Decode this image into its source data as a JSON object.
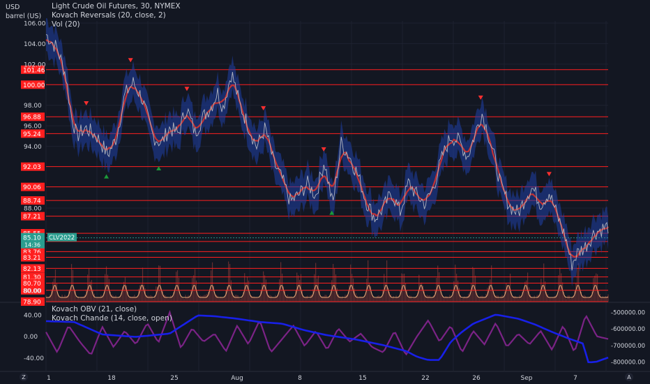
{
  "header": {
    "currency": "USD",
    "unit": "barrel (US)",
    "line1": "Light Crude Oil Futures, 30, NYMEX",
    "line2": "Kovach Reversals (20, close, 2)",
    "line3": "Vol (20)",
    "osc_line1": "Kovach OBV (21, close)",
    "osc_line2": "Kovach Chande (14, close, open)"
  },
  "colors": {
    "background": "#131722",
    "grid": "#1e2230",
    "level": "#ff1f1f",
    "price": "#b2b5be",
    "reversal_band": "#e0342a",
    "envelope": "#1f3fa8",
    "sell_marker": "#ff2f2f",
    "buy_marker": "#1b9a3a",
    "volume": "#7a3636",
    "vol_ma": "#e8a878",
    "obv": "#1820e8",
    "chande": "#7b2386",
    "ticker_tag": "#2a9d8f"
  },
  "time_axis": {
    "labels": [
      "1",
      "18",
      "25",
      "Aug",
      "8",
      "15",
      "22",
      "26",
      "Sep",
      "7"
    ],
    "left_icon": "Z",
    "right_icon": "A"
  },
  "price_axis": {
    "ticks": [
      "106.00",
      "104.00",
      "102.00",
      "98.00",
      "96.00",
      "94.00",
      "88.00",
      "80.00"
    ],
    "range": [
      78.9,
      106.2
    ]
  },
  "levels": [
    "101.46",
    "100.00",
    "96.88",
    "95.24",
    "92.03",
    "90.06",
    "88.74",
    "87.21",
    "85.55",
    "84.75",
    "83.76",
    "83.21",
    "82.13",
    "81.30",
    "80.70",
    "80.00",
    "78.90"
  ],
  "last_price": {
    "value": "85.10",
    "countdown": "14:36",
    "ticker": "CLV2022"
  },
  "osc_axis": {
    "left_ticks": [
      "40.00",
      "0.00",
      "-40.00"
    ],
    "right_ticks": [
      "-500000.00",
      "-600000.00",
      "-700000.00",
      "-800000.00"
    ],
    "left_range": [
      -64,
      62
    ],
    "right_range": [
      -855000,
      -445000
    ]
  },
  "chart_data": [
    {
      "type": "line",
      "name": "Light Crude Oil Futures, 30, NYMEX",
      "x_start": "Jul 1",
      "x_end": "Sep 9",
      "anchors": [
        [
          0,
          104.9
        ],
        [
          0.02,
          103.5
        ],
        [
          0.035,
          101.0
        ],
        [
          0.045,
          97.0
        ],
        [
          0.055,
          95.0
        ],
        [
          0.07,
          95.8
        ],
        [
          0.09,
          95.0
        ],
        [
          0.11,
          93.2
        ],
        [
          0.125,
          94.8
        ],
        [
          0.14,
          99.0
        ],
        [
          0.155,
          100.2
        ],
        [
          0.17,
          98.8
        ],
        [
          0.19,
          95.0
        ],
        [
          0.205,
          94.3
        ],
        [
          0.22,
          95.8
        ],
        [
          0.235,
          95.2
        ],
        [
          0.25,
          97.8
        ],
        [
          0.265,
          95.3
        ],
        [
          0.28,
          96.9
        ],
        [
          0.295,
          98.0
        ],
        [
          0.305,
          99.3
        ],
        [
          0.315,
          97.8
        ],
        [
          0.33,
          101.2
        ],
        [
          0.345,
          98.0
        ],
        [
          0.36,
          96.0
        ],
        [
          0.375,
          93.9
        ],
        [
          0.39,
          95.8
        ],
        [
          0.405,
          92.4
        ],
        [
          0.42,
          90.8
        ],
        [
          0.435,
          88.6
        ],
        [
          0.45,
          89.3
        ],
        [
          0.465,
          90.4
        ],
        [
          0.48,
          89.2
        ],
        [
          0.495,
          92.6
        ],
        [
          0.51,
          88.3
        ],
        [
          0.525,
          94.3
        ],
        [
          0.54,
          93.0
        ],
        [
          0.555,
          91.2
        ],
        [
          0.57,
          88.6
        ],
        [
          0.585,
          87.0
        ],
        [
          0.6,
          88.0
        ],
        [
          0.615,
          89.5
        ],
        [
          0.63,
          87.6
        ],
        [
          0.645,
          90.5
        ],
        [
          0.66,
          89.2
        ],
        [
          0.675,
          88.4
        ],
        [
          0.69,
          90.2
        ],
        [
          0.705,
          93.0
        ],
        [
          0.72,
          95.0
        ],
        [
          0.735,
          94.5
        ],
        [
          0.75,
          93.0
        ],
        [
          0.765,
          95.5
        ],
        [
          0.775,
          97.3
        ],
        [
          0.785,
          95.6
        ],
        [
          0.8,
          92.4
        ],
        [
          0.81,
          90.0
        ],
        [
          0.825,
          88.2
        ],
        [
          0.84,
          87.5
        ],
        [
          0.855,
          89.3
        ],
        [
          0.865,
          90.0
        ],
        [
          0.88,
          88.4
        ],
        [
          0.895,
          89.5
        ],
        [
          0.91,
          87.2
        ],
        [
          0.925,
          85.0
        ],
        [
          0.935,
          82.5
        ],
        [
          0.945,
          83.6
        ],
        [
          0.96,
          84.3
        ],
        [
          0.975,
          85.6
        ],
        [
          0.99,
          86.0
        ],
        [
          1.0,
          86.2
        ]
      ]
    },
    {
      "type": "line",
      "name": "Kovach OBV (21, close)",
      "anchors": [
        [
          0,
          -555000
        ],
        [
          0.05,
          -560000
        ],
        [
          0.1,
          -635000
        ],
        [
          0.16,
          -650000
        ],
        [
          0.22,
          -630000
        ],
        [
          0.27,
          -520000
        ],
        [
          0.3,
          -525000
        ],
        [
          0.34,
          -540000
        ],
        [
          0.38,
          -560000
        ],
        [
          0.42,
          -570000
        ],
        [
          0.46,
          -610000
        ],
        [
          0.5,
          -640000
        ],
        [
          0.55,
          -665000
        ],
        [
          0.6,
          -700000
        ],
        [
          0.64,
          -735000
        ],
        [
          0.66,
          -770000
        ],
        [
          0.68,
          -790000
        ],
        [
          0.7,
          -790000
        ],
        [
          0.72,
          -680000
        ],
        [
          0.74,
          -620000
        ],
        [
          0.76,
          -570000
        ],
        [
          0.8,
          -515000
        ],
        [
          0.84,
          -540000
        ],
        [
          0.87,
          -575000
        ],
        [
          0.9,
          -620000
        ],
        [
          0.93,
          -660000
        ],
        [
          0.955,
          -690000
        ],
        [
          0.965,
          -805000
        ],
        [
          0.98,
          -800000
        ],
        [
          1.0,
          -775000
        ]
      ]
    },
    {
      "type": "line",
      "name": "Kovach Chande (14, close, open)",
      "anchors": [
        [
          0,
          8
        ],
        [
          0.02,
          -30
        ],
        [
          0.04,
          20
        ],
        [
          0.06,
          -10
        ],
        [
          0.08,
          -35
        ],
        [
          0.1,
          18
        ],
        [
          0.12,
          -20
        ],
        [
          0.14,
          10
        ],
        [
          0.16,
          -15
        ],
        [
          0.18,
          25
        ],
        [
          0.2,
          -12
        ],
        [
          0.22,
          45
        ],
        [
          0.24,
          -22
        ],
        [
          0.26,
          15
        ],
        [
          0.28,
          -10
        ],
        [
          0.3,
          5
        ],
        [
          0.32,
          -28
        ],
        [
          0.34,
          20
        ],
        [
          0.36,
          -15
        ],
        [
          0.38,
          30
        ],
        [
          0.4,
          -30
        ],
        [
          0.42,
          -5
        ],
        [
          0.44,
          20
        ],
        [
          0.46,
          -18
        ],
        [
          0.48,
          10
        ],
        [
          0.5,
          -25
        ],
        [
          0.52,
          15
        ],
        [
          0.54,
          -10
        ],
        [
          0.56,
          5
        ],
        [
          0.58,
          -20
        ],
        [
          0.6,
          -30
        ],
        [
          0.62,
          10
        ],
        [
          0.64,
          -35
        ],
        [
          0.66,
          0
        ],
        [
          0.68,
          30
        ],
        [
          0.7,
          -10
        ],
        [
          0.72,
          20
        ],
        [
          0.74,
          -30
        ],
        [
          0.76,
          10
        ],
        [
          0.78,
          -15
        ],
        [
          0.8,
          25
        ],
        [
          0.82,
          -20
        ],
        [
          0.84,
          5
        ],
        [
          0.86,
          -15
        ],
        [
          0.88,
          10
        ],
        [
          0.9,
          -25
        ],
        [
          0.92,
          20
        ],
        [
          0.94,
          -30
        ],
        [
          0.96,
          40
        ],
        [
          0.98,
          0
        ],
        [
          1.0,
          -5
        ]
      ]
    }
  ]
}
